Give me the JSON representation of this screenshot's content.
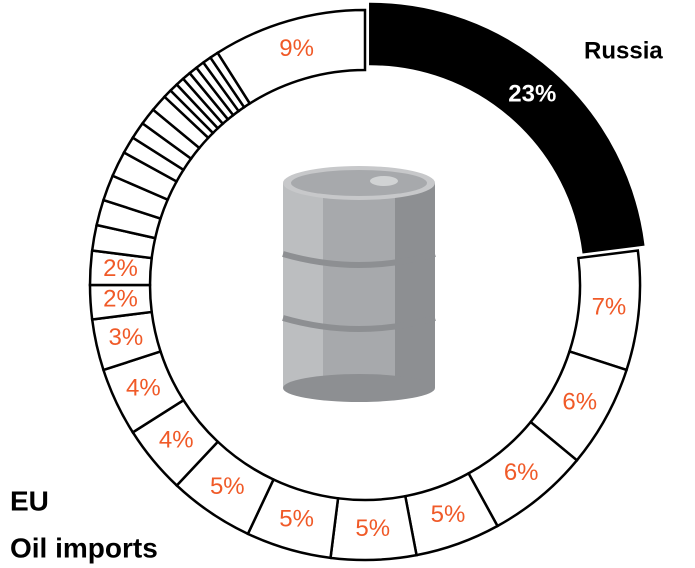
{
  "chart_data": {
    "type": "donut",
    "title_lines": [
      "EU",
      "Oil imports"
    ],
    "categories": [
      "Russia",
      null,
      null,
      null,
      null,
      null,
      null,
      null,
      null,
      null,
      null,
      null,
      null,
      null,
      null,
      null,
      null,
      null,
      null,
      null,
      null,
      null,
      null,
      null,
      null,
      null,
      null,
      null,
      null,
      null
    ],
    "values": [
      23,
      7,
      6,
      6,
      5,
      5,
      5,
      5,
      4,
      4,
      3,
      2,
      2,
      1.5,
      1.5,
      1.5,
      1.5,
      1,
      1,
      1,
      1,
      0.5,
      0.5,
      0.5,
      0.5,
      0.5,
      0.5,
      0.5,
      0.5,
      9
    ],
    "value_labels": [
      "23%",
      "7%",
      "6%",
      "6%",
      "5%",
      "5%",
      "5%",
      "5%",
      "4%",
      "4%",
      "3%",
      "2%",
      "2%",
      null,
      null,
      null,
      null,
      null,
      null,
      null,
      null,
      null,
      null,
      null,
      null,
      null,
      null,
      null,
      null,
      "9%"
    ],
    "colors": [
      "#000000",
      "#ffffff",
      "#ffffff",
      "#ffffff",
      "#ffffff",
      "#ffffff",
      "#ffffff",
      "#ffffff",
      "#ffffff",
      "#ffffff",
      "#ffffff",
      "#ffffff",
      "#ffffff",
      "#ffffff",
      "#ffffff",
      "#ffffff",
      "#ffffff",
      "#ffffff",
      "#ffffff",
      "#ffffff",
      "#ffffff",
      "#ffffff",
      "#ffffff",
      "#ffffff",
      "#ffffff",
      "#ffffff",
      "#ffffff",
      "#ffffff",
      "#ffffff",
      "#ffffff"
    ],
    "label_colors": [
      "#ffffff",
      "#f05a28"
    ],
    "exploded": 0
  }
}
